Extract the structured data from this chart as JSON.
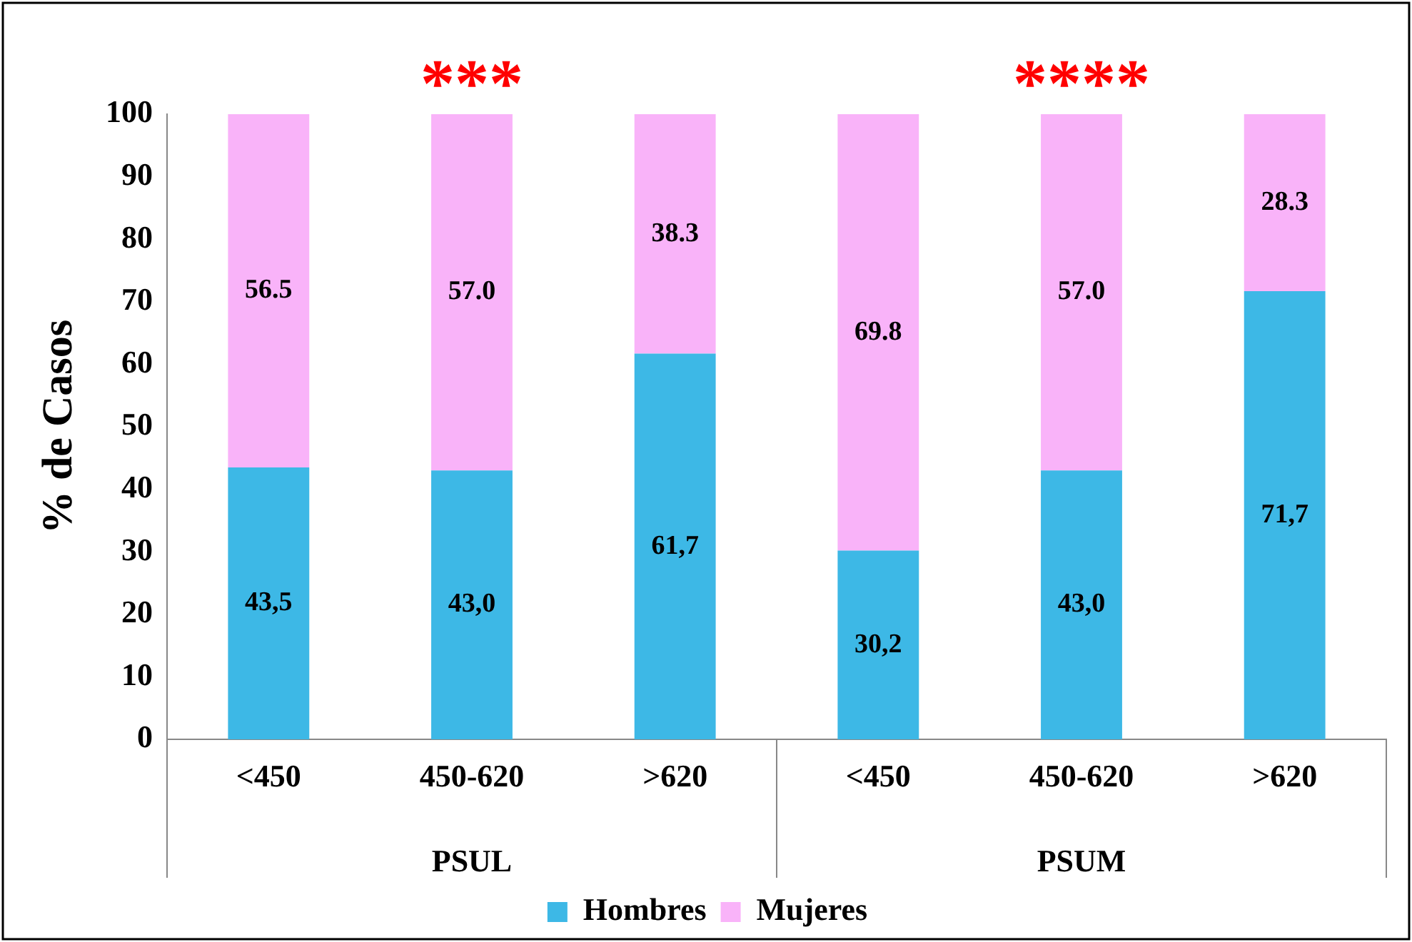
{
  "chart_data": {
    "type": "bar",
    "stacked": true,
    "ylabel": "% de Casos",
    "categories": [
      "<450",
      "450-620",
      ">620",
      "<450",
      "450-620",
      ">620"
    ],
    "series": [
      {
        "name": "Hombres",
        "color": "#3db8e6",
        "values": [
          43.5,
          43.0,
          61.7,
          30.2,
          43.0,
          71.7
        ],
        "value_labels": [
          "43,5",
          "43,0",
          "61,7",
          "30,2",
          "43,0",
          "71,7"
        ]
      },
      {
        "name": "Mujeres",
        "color": "#f9b3f9",
        "values": [
          56.5,
          57.0,
          38.3,
          69.8,
          57.0,
          28.3
        ],
        "value_labels": [
          "56.5",
          "57.0",
          "38.3",
          "69.8",
          "57.0",
          "28.3"
        ]
      }
    ],
    "ylim": [
      0,
      100
    ],
    "yticks": [
      0,
      10,
      20,
      30,
      40,
      50,
      60,
      70,
      80,
      90,
      100
    ],
    "grid": false,
    "legend": "bottom",
    "annotations": [
      "***",
      "****",
      "PSUL",
      "PSUM"
    ]
  }
}
